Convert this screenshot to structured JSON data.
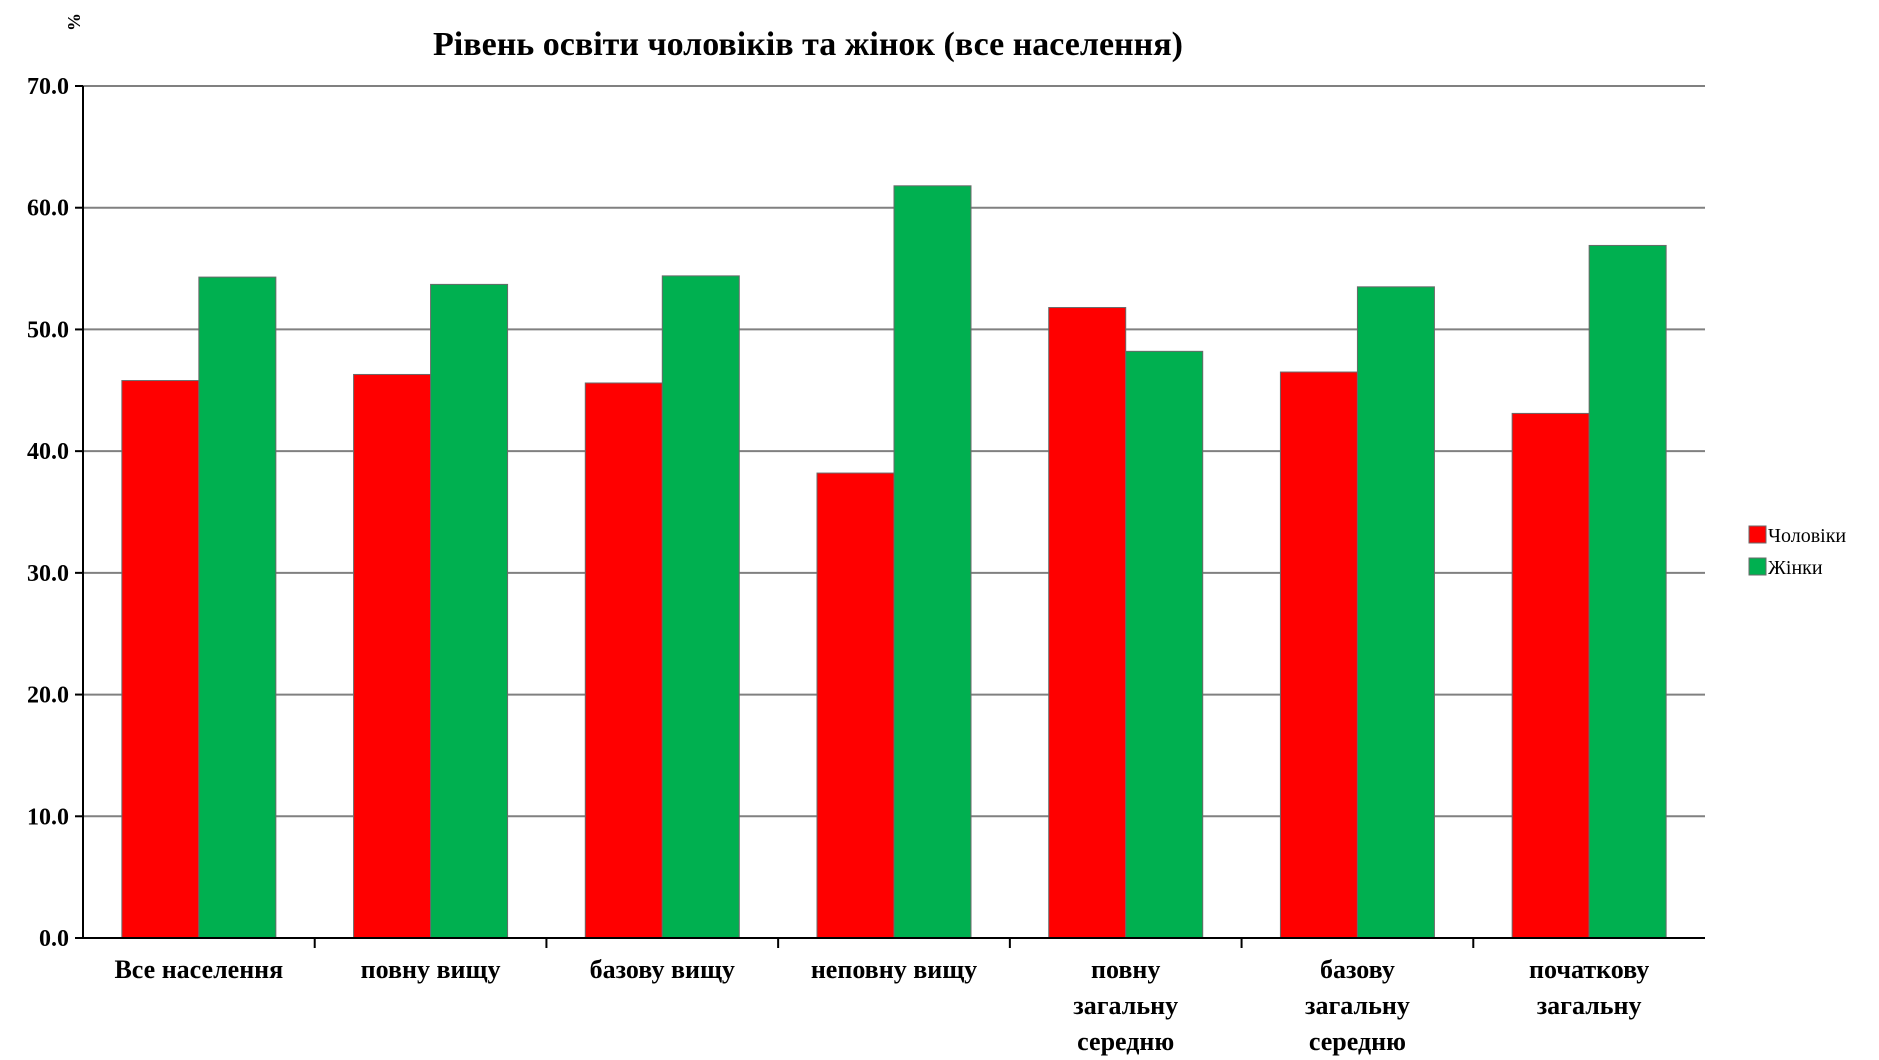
{
  "chart_data": {
    "type": "bar",
    "title": "Рівень освіти чоловіків та жінок (все населення)",
    "ylabel": "%",
    "xlabel": "",
    "ylim": [
      0,
      70
    ],
    "yticks": [
      "0.0",
      "10.0",
      "20.0",
      "30.0",
      "40.0",
      "50.0",
      "60.0",
      "70.0"
    ],
    "grid": true,
    "legend_position": "right",
    "categories": [
      [
        "Все населення"
      ],
      [
        "повну вищу"
      ],
      [
        "базову вищу"
      ],
      [
        "неповну вищу"
      ],
      [
        "повну",
        "загальну",
        "середню"
      ],
      [
        "базову",
        "загальну",
        "середню"
      ],
      [
        "початкову",
        "загальну"
      ]
    ],
    "series": [
      {
        "name": "Чоловіки",
        "color": "#ff0000",
        "values": [
          45.8,
          46.3,
          45.6,
          38.2,
          51.8,
          46.5,
          43.1
        ]
      },
      {
        "name": "Жінки",
        "color": "#00b050",
        "values": [
          54.3,
          53.7,
          54.4,
          61.8,
          48.2,
          53.5,
          56.9
        ]
      }
    ]
  }
}
